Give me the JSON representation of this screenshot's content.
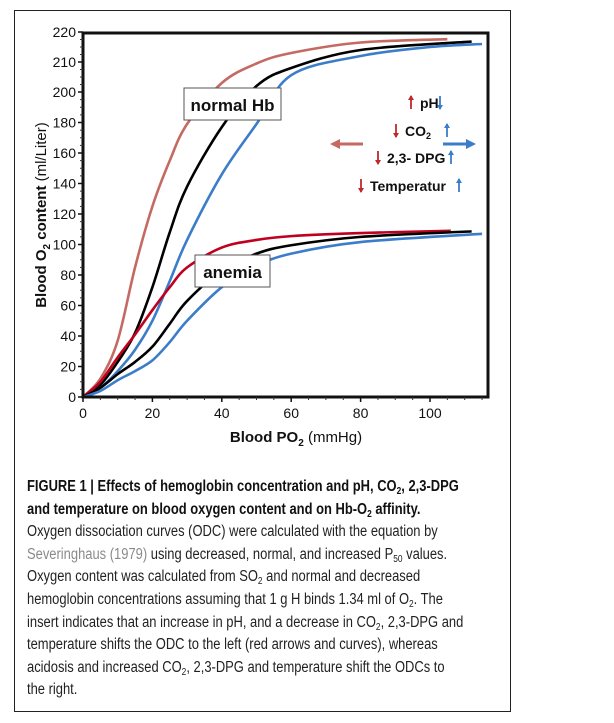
{
  "chart_data": {
    "type": "line",
    "xlabel": "Blood PO",
    "xlabel_sub": "2",
    "xlabel_unit": " (mmHg)",
    "ylabel": "Blood O",
    "ylabel_sub": "2",
    "ylabel_rest": " content",
    "ylabel_unit": " (ml/Liter)",
    "xlim": [
      0,
      117
    ],
    "ylim": [
      0,
      220
    ],
    "y_scale_note": "broken axis: 0-200 in steps of 20, 200-220 in steps of 10",
    "x_ticks": [
      "0",
      "20",
      "40",
      "60",
      "80",
      "100"
    ],
    "y_ticks": [
      "0",
      "20",
      "40",
      "60",
      "80",
      "100",
      "120",
      "140",
      "160",
      "180",
      "200",
      "210",
      "220"
    ],
    "grid": false,
    "colors": {
      "left_shift_normal": "#c46a63",
      "left_shift_anemia": "#c0001f",
      "normal": "#000000",
      "right_shift": "#3b7dc9"
    },
    "groups": [
      {
        "label": "normal Hb",
        "series": [
          {
            "shift": "left",
            "color": "#c46a63",
            "x": [
              0,
              5,
              10,
              15,
              20,
              25,
              30,
              40,
              50,
              60,
              80,
              105
            ],
            "y": [
              0,
              12,
              37,
              85,
              125,
              155,
              179,
              203,
              209.5,
              213,
              216.5,
              217.6
            ]
          },
          {
            "shift": "normal",
            "color": "#000000",
            "x": [
              0,
              5,
              10,
              15,
              20,
              25,
              30,
              40,
              50,
              60,
              80,
              112
            ],
            "y": [
              0,
              8,
              23,
              42,
              72,
              108,
              138,
              177,
              202,
              208,
              214,
              216.8
            ]
          },
          {
            "shift": "right",
            "color": "#3b7dc9",
            "x": [
              0,
              5,
              10,
              15,
              20,
              25,
              30,
              40,
              50,
              60,
              80,
              100,
              115
            ],
            "y": [
              0,
              6,
              17,
              31,
              50,
              76,
              103,
              146,
              179,
              205.6,
              212,
              215,
              216
            ]
          }
        ]
      },
      {
        "label": "anemia",
        "series": [
          {
            "shift": "left",
            "color": "#c0001f",
            "x": [
              0,
              5,
              10,
              15,
              20,
              25,
              30,
              40,
              50,
              60,
              80,
              106
            ],
            "y": [
              0,
              10,
              26,
              41,
              57,
              72,
              85,
              98,
              103,
              105.5,
              107.5,
              109
            ]
          },
          {
            "shift": "normal",
            "color": "#000000",
            "x": [
              0,
              5,
              10,
              15,
              20,
              25,
              30,
              40,
              50,
              60,
              80,
              112
            ],
            "y": [
              0,
              6,
              15,
              23,
              33,
              48,
              63,
              83,
              94,
              99.5,
              105,
              108.6
            ]
          },
          {
            "shift": "right",
            "color": "#3b7dc9",
            "x": [
              0,
              5,
              10,
              15,
              20,
              25,
              30,
              40,
              50,
              60,
              80,
              115
            ],
            "y": [
              0,
              4,
              11,
              17,
              24,
              36,
              50,
              72,
              86,
              94,
              101.6,
              107
            ]
          }
        ]
      }
    ],
    "insert": {
      "rows": [
        {
          "left_arrow": "up",
          "label": "pH",
          "sub": "",
          "right_arrow": "down"
        },
        {
          "left_arrow": "down",
          "label": "CO",
          "sub": "2",
          "right_arrow": "up"
        },
        {
          "left_arrow": "down",
          "label": "2,3- DPG",
          "sub": "",
          "right_arrow": "up"
        },
        {
          "left_arrow": "down",
          "label": "Temperatur",
          "sub": "",
          "right_arrow": "up"
        }
      ],
      "left_shift_color": "#c0272d",
      "right_shift_color": "#3b7dc9"
    }
  },
  "caption": {
    "lines": [
      {
        "bold": true,
        "segs": [
          {
            "t": "FIGURE 1 | Effects of hemoglobin concentration and pH, CO"
          },
          {
            "t": "2",
            "sub": true
          },
          {
            "t": ", 2,3-DPG"
          }
        ]
      },
      {
        "bold": true,
        "segs": [
          {
            "t": "and temperature on blood oxygen content and on Hb-O"
          },
          {
            "t": "2",
            "sub": true
          },
          {
            "t": " affinity."
          }
        ]
      },
      {
        "segs": [
          {
            "t": "Oxygen dissociation curves (ODC) were calculated with the equation by"
          }
        ]
      },
      {
        "segs": [
          {
            "t": "Severinghaus (1979)",
            "gray": true
          },
          {
            "t": " using decreased, normal, and increased P"
          },
          {
            "t": "50",
            "sub": true
          },
          {
            "t": " values."
          }
        ]
      },
      {
        "segs": [
          {
            "t": "Oxygen content was calculated from SO"
          },
          {
            "t": "2",
            "sub": true
          },
          {
            "t": " and normal and decreased"
          }
        ]
      },
      {
        "segs": [
          {
            "t": "hemoglobin concentrations assuming that 1 g H binds 1.34 ml of O"
          },
          {
            "t": "2",
            "sub": true
          },
          {
            "t": ". The"
          }
        ]
      },
      {
        "segs": [
          {
            "t": "insert indicates that an increase in pH, and a decrease in CO"
          },
          {
            "t": "2",
            "sub": true
          },
          {
            "t": ", 2,3-DPG and"
          }
        ]
      },
      {
        "segs": [
          {
            "t": "temperature shifts the ODC to the left (red arrows and curves), whereas"
          }
        ]
      },
      {
        "segs": [
          {
            "t": "acidosis and increased CO"
          },
          {
            "t": "2",
            "sub": true
          },
          {
            "t": ", 2,3-DPG and temperature shift the ODCs to"
          }
        ]
      },
      {
        "segs": [
          {
            "t": "the right."
          }
        ]
      }
    ]
  }
}
